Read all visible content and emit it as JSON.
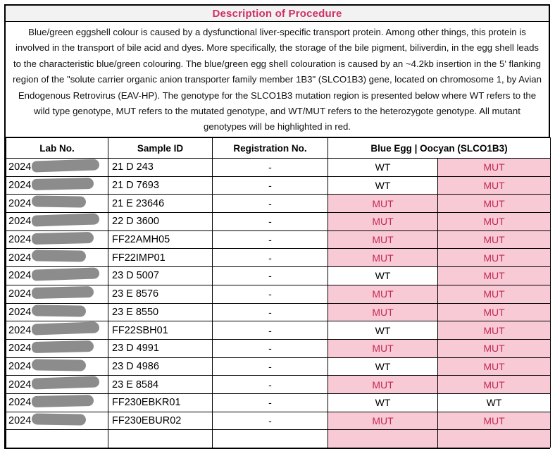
{
  "header": {
    "title": "Description of Procedure"
  },
  "description": {
    "text": "Blue/green eggshell colour is caused by a dysfunctional liver-specific transport protein. Among other things, this protein is involved in the transport of bile acid and dyes. More specifically, the storage of the bile pigment, biliverdin, in the egg shell leads to the characteristic blue/green colouring. The blue/green egg shell colouration is caused by an ~4.2kb insertion in the 5' flanking region of the \"solute carrier organic anion transporter family member 1B3\" (SLCO1B3) gene, located on chromosome 1, by Avian Endogenous Retrovirus (EAV-HP). The genotype for the SLCO1B3 mutation region is presented below where WT refers to the wild type genotype, MUT refers to the mutated genotype, and WT/MUT refers to the heterozygote genotype. All mutant genotypes will be highlighted in red."
  },
  "table": {
    "headers": {
      "lab_no": "Lab No.",
      "sample_id": "Sample ID",
      "registration_no": "Registration No.",
      "genotype": "Blue Egg | Oocyan (SLCO1B3)"
    },
    "rows": [
      {
        "lab_prefix": "2024",
        "redacted": true,
        "sample_id": "21 D 243",
        "registration": "-",
        "alleles": [
          {
            "value": "WT",
            "highlight": false
          },
          {
            "value": "MUT",
            "highlight": true
          }
        ],
        "partial": false
      },
      {
        "lab_prefix": "2024",
        "redacted": true,
        "sample_id": "21 D 7693",
        "registration": "-",
        "alleles": [
          {
            "value": "WT",
            "highlight": false
          },
          {
            "value": "MUT",
            "highlight": true
          }
        ],
        "partial": false
      },
      {
        "lab_prefix": "2024",
        "redacted": true,
        "sample_id": "21 E 23646",
        "registration": "-",
        "alleles": [
          {
            "value": "MUT",
            "highlight": true
          },
          {
            "value": "MUT",
            "highlight": true
          }
        ],
        "partial": false
      },
      {
        "lab_prefix": "2024",
        "redacted": true,
        "sample_id": "22 D 3600",
        "registration": "-",
        "alleles": [
          {
            "value": "MUT",
            "highlight": true
          },
          {
            "value": "MUT",
            "highlight": true
          }
        ],
        "partial": false
      },
      {
        "lab_prefix": "2024",
        "redacted": true,
        "sample_id": "FF22AMH05",
        "registration": "-",
        "alleles": [
          {
            "value": "MUT",
            "highlight": true
          },
          {
            "value": "MUT",
            "highlight": true
          }
        ],
        "partial": false
      },
      {
        "lab_prefix": "2024",
        "redacted": true,
        "sample_id": "FF22IMP01",
        "registration": "-",
        "alleles": [
          {
            "value": "MUT",
            "highlight": true
          },
          {
            "value": "MUT",
            "highlight": true
          }
        ],
        "partial": false
      },
      {
        "lab_prefix": "2024",
        "redacted": true,
        "sample_id": "23 D 5007",
        "registration": "-",
        "alleles": [
          {
            "value": "WT",
            "highlight": false
          },
          {
            "value": "MUT",
            "highlight": true
          }
        ],
        "partial": false
      },
      {
        "lab_prefix": "2024",
        "redacted": true,
        "sample_id": "23 E 8576",
        "registration": "-",
        "alleles": [
          {
            "value": "MUT",
            "highlight": true
          },
          {
            "value": "MUT",
            "highlight": true
          }
        ],
        "partial": false
      },
      {
        "lab_prefix": "2024",
        "redacted": true,
        "sample_id": "23 E 8550",
        "registration": "-",
        "alleles": [
          {
            "value": "MUT",
            "highlight": true
          },
          {
            "value": "MUT",
            "highlight": true
          }
        ],
        "partial": false
      },
      {
        "lab_prefix": "2024",
        "redacted": true,
        "sample_id": "FF22SBH01",
        "registration": "-",
        "alleles": [
          {
            "value": "WT",
            "highlight": false
          },
          {
            "value": "MUT",
            "highlight": true
          }
        ],
        "partial": false
      },
      {
        "lab_prefix": "2024",
        "redacted": true,
        "sample_id": "23 D 4991",
        "registration": "-",
        "alleles": [
          {
            "value": "MUT",
            "highlight": true
          },
          {
            "value": "MUT",
            "highlight": true
          }
        ],
        "partial": false
      },
      {
        "lab_prefix": "2024",
        "redacted": true,
        "sample_id": "23 D 4986",
        "registration": "-",
        "alleles": [
          {
            "value": "WT",
            "highlight": false
          },
          {
            "value": "MUT",
            "highlight": true
          }
        ],
        "partial": false
      },
      {
        "lab_prefix": "2024",
        "redacted": true,
        "sample_id": "23 E 8584",
        "registration": "-",
        "alleles": [
          {
            "value": "MUT",
            "highlight": true
          },
          {
            "value": "MUT",
            "highlight": true
          }
        ],
        "partial": false
      },
      {
        "lab_prefix": "2024",
        "redacted": true,
        "sample_id": "FF230EBKR01",
        "registration": "-",
        "alleles": [
          {
            "value": "WT",
            "highlight": false
          },
          {
            "value": "WT",
            "highlight": false
          }
        ],
        "partial": false
      },
      {
        "lab_prefix": "2024",
        "redacted": true,
        "sample_id": "FF230EBUR02",
        "registration": "-",
        "alleles": [
          {
            "value": "MUT",
            "highlight": true
          },
          {
            "value": "MUT",
            "highlight": true
          }
        ],
        "partial": false
      },
      {
        "lab_prefix": "",
        "redacted": false,
        "sample_id": "",
        "registration": "",
        "alleles": [
          {
            "value": "",
            "highlight": true
          },
          {
            "value": "",
            "highlight": true
          }
        ],
        "partial": true
      }
    ]
  },
  "colors": {
    "accent_title": "#CE3163",
    "mut_text": "#C22A52",
    "mut_bg": "#F8CAD5",
    "redaction_gray": "#8C8C8C",
    "title_bar_bg": "#F2F2F2",
    "border": "#000000"
  }
}
